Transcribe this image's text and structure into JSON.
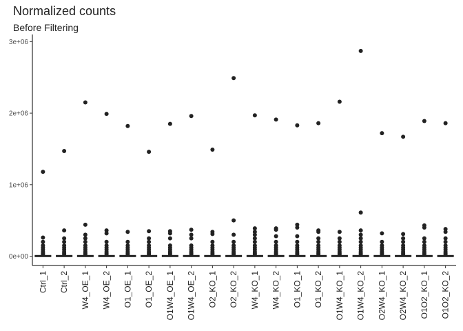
{
  "chart_data": {
    "type": "boxplot",
    "title": "Normalized counts",
    "subtitle": "Before Filtering",
    "categories": [
      "Ctrl_1",
      "Ctrl_2",
      "W4_OE_1",
      "W4_OE_2",
      "O1_OE_1",
      "O1_OE_2",
      "O1W4_OE_1",
      "O1W4_OE_2",
      "O2_KO_1",
      "O2_KO_2",
      "W4_KO_1",
      "W4_KO_2",
      "O1_KO_1",
      "O1_KO_2",
      "O1W4_KO_1",
      "O1W4_KO_2",
      "O2W4_KO_1",
      "O2W4_KO_2",
      "O1O2_KO_1",
      "O1O2_KO_2"
    ],
    "color": "#222222",
    "boxes": [
      {
        "min": 0,
        "q1": 100,
        "median": 500,
        "q3": 2000,
        "max": 4500,
        "outliers": [
          1180000,
          260000,
          200000,
          150000,
          120000,
          90000,
          60000,
          40000,
          20000
        ]
      },
      {
        "min": 0,
        "q1": 100,
        "median": 500,
        "q3": 2000,
        "max": 4500,
        "outliers": [
          1470000,
          360000,
          250000,
          200000,
          150000,
          120000,
          90000,
          60000,
          40000,
          20000
        ]
      },
      {
        "min": 0,
        "q1": 100,
        "median": 500,
        "q3": 2000,
        "max": 4500,
        "outliers": [
          2150000,
          440000,
          300000,
          250000,
          200000,
          150000,
          120000,
          90000,
          60000,
          40000,
          20000
        ]
      },
      {
        "min": 0,
        "q1": 100,
        "median": 500,
        "q3": 2000,
        "max": 4500,
        "outliers": [
          1990000,
          360000,
          320000,
          200000,
          150000,
          120000,
          90000,
          60000,
          40000,
          20000
        ]
      },
      {
        "min": 0,
        "q1": 100,
        "median": 500,
        "q3": 2000,
        "max": 4500,
        "outliers": [
          1820000,
          340000,
          200000,
          150000,
          120000,
          90000,
          60000,
          40000,
          20000
        ]
      },
      {
        "min": 0,
        "q1": 100,
        "median": 500,
        "q3": 2000,
        "max": 4500,
        "outliers": [
          1460000,
          350000,
          250000,
          200000,
          150000,
          120000,
          90000,
          60000,
          40000,
          20000
        ]
      },
      {
        "min": 0,
        "q1": 100,
        "median": 500,
        "q3": 2000,
        "max": 4500,
        "outliers": [
          1850000,
          350000,
          320000,
          250000,
          150000,
          120000,
          90000,
          60000,
          40000,
          20000
        ]
      },
      {
        "min": 0,
        "q1": 100,
        "median": 500,
        "q3": 2000,
        "max": 4500,
        "outliers": [
          1960000,
          370000,
          300000,
          250000,
          150000,
          120000,
          90000,
          60000,
          40000,
          20000
        ]
      },
      {
        "min": 0,
        "q1": 100,
        "median": 500,
        "q3": 2000,
        "max": 4500,
        "outliers": [
          1490000,
          340000,
          310000,
          200000,
          150000,
          120000,
          90000,
          60000,
          40000,
          20000
        ]
      },
      {
        "min": 0,
        "q1": 100,
        "median": 500,
        "q3": 2000,
        "max": 4500,
        "outliers": [
          2490000,
          500000,
          300000,
          200000,
          150000,
          120000,
          90000,
          60000,
          40000,
          20000
        ]
      },
      {
        "min": 0,
        "q1": 100,
        "median": 500,
        "q3": 2000,
        "max": 4500,
        "outliers": [
          1970000,
          390000,
          340000,
          300000,
          250000,
          200000,
          150000,
          120000,
          90000,
          60000,
          40000,
          20000
        ]
      },
      {
        "min": 0,
        "q1": 100,
        "median": 500,
        "q3": 2000,
        "max": 4500,
        "outliers": [
          1910000,
          390000,
          370000,
          280000,
          200000,
          150000,
          120000,
          90000,
          60000,
          40000,
          20000
        ]
      },
      {
        "min": 0,
        "q1": 100,
        "median": 500,
        "q3": 2000,
        "max": 4500,
        "outliers": [
          1830000,
          440000,
          400000,
          280000,
          200000,
          150000,
          120000,
          90000,
          60000,
          40000,
          20000
        ]
      },
      {
        "min": 0,
        "q1": 100,
        "median": 500,
        "q3": 2000,
        "max": 4500,
        "outliers": [
          1860000,
          360000,
          340000,
          250000,
          200000,
          150000,
          120000,
          90000,
          60000,
          40000,
          20000
        ]
      },
      {
        "min": 0,
        "q1": 100,
        "median": 500,
        "q3": 2000,
        "max": 4500,
        "outliers": [
          2160000,
          340000,
          250000,
          200000,
          150000,
          120000,
          90000,
          60000,
          40000,
          20000
        ]
      },
      {
        "min": 0,
        "q1": 100,
        "median": 500,
        "q3": 2000,
        "max": 4500,
        "outliers": [
          2870000,
          610000,
          360000,
          300000,
          250000,
          200000,
          150000,
          120000,
          90000,
          60000,
          40000,
          20000
        ]
      },
      {
        "min": 0,
        "q1": 100,
        "median": 500,
        "q3": 2000,
        "max": 4500,
        "outliers": [
          1720000,
          320000,
          200000,
          150000,
          120000,
          90000,
          60000,
          40000,
          20000
        ]
      },
      {
        "min": 0,
        "q1": 100,
        "median": 500,
        "q3": 2000,
        "max": 4500,
        "outliers": [
          1670000,
          310000,
          250000,
          200000,
          150000,
          120000,
          90000,
          60000,
          40000,
          20000
        ]
      },
      {
        "min": 0,
        "q1": 100,
        "median": 500,
        "q3": 2000,
        "max": 4500,
        "outliers": [
          1890000,
          430000,
          400000,
          250000,
          200000,
          150000,
          120000,
          90000,
          60000,
          40000,
          20000
        ]
      },
      {
        "min": 0,
        "q1": 100,
        "median": 500,
        "q3": 2000,
        "max": 4500,
        "outliers": [
          1860000,
          380000,
          340000,
          250000,
          200000,
          150000,
          120000,
          90000,
          60000,
          40000,
          20000
        ]
      }
    ],
    "ylim": [
      -130000,
      3100000
    ],
    "yticks": [
      {
        "value": 0,
        "label": "0e+00"
      },
      {
        "value": 1000000,
        "label": "1e+06"
      },
      {
        "value": 2000000,
        "label": "2e+06"
      },
      {
        "value": 3000000,
        "label": "3e+06"
      }
    ],
    "grid": false
  }
}
